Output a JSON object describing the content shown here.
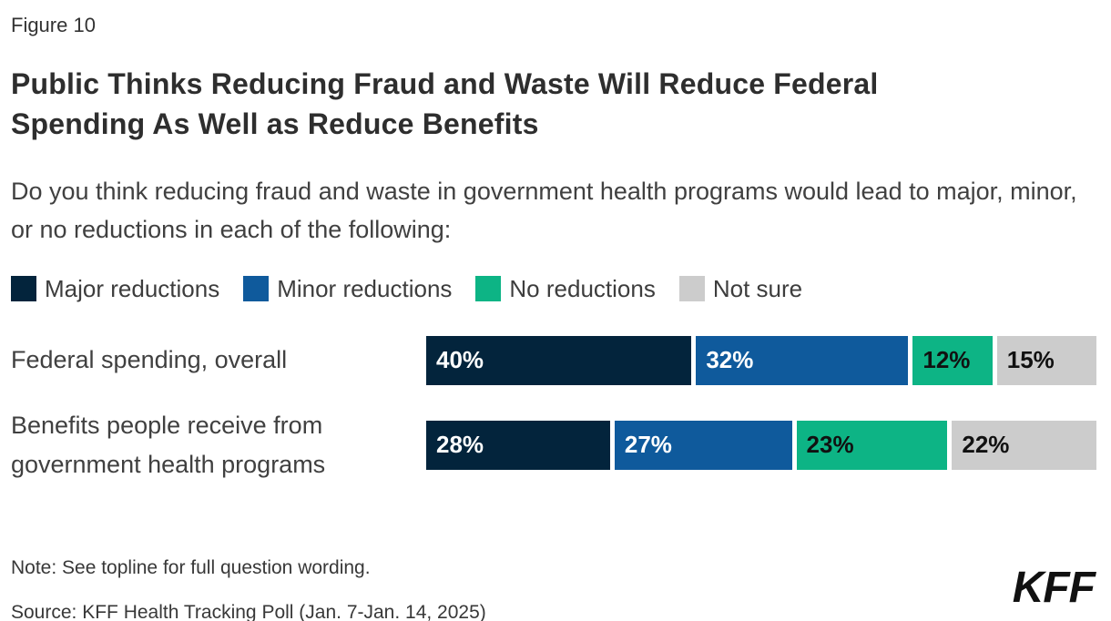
{
  "figure_label": "Figure 10",
  "title": "Public Thinks Reducing Fraud and Waste Will Reduce Federal Spending As Well as Reduce Benefits",
  "subtitle": "Do you think reducing fraud and waste in government health programs would lead to major, minor, or no reductions in each of the following:",
  "note": "Note: See topline for full question wording.",
  "source": "Source: KFF Health Tracking Poll (Jan. 7-Jan. 14, 2025)",
  "logo_text": "KFF",
  "colors": {
    "major": "#03243c",
    "minor": "#0f5a9c",
    "none": "#0db485",
    "not_sure": "#cccccc"
  },
  "chart_data": {
    "type": "bar",
    "orientation": "horizontal-stacked",
    "title": "Public Thinks Reducing Fraud and Waste Will Reduce Federal Spending As Well as Reduce Benefits",
    "categories": [
      "Federal spending, overall",
      "Benefits people receive from government health programs"
    ],
    "series": [
      {
        "name": "Major reductions",
        "color": "#03243c",
        "text_color": "#ffffff",
        "values": [
          40,
          28
        ]
      },
      {
        "name": "Minor reductions",
        "color": "#0f5a9c",
        "text_color": "#ffffff",
        "values": [
          32,
          27
        ]
      },
      {
        "name": "No reductions",
        "color": "#0db485",
        "text_color": "#111111",
        "values": [
          12,
          23
        ]
      },
      {
        "name": "Not sure",
        "color": "#cccccc",
        "text_color": "#111111",
        "values": [
          15,
          22
        ]
      }
    ],
    "value_suffix": "%",
    "xlim": [
      0,
      100
    ],
    "grid": false,
    "legend_position": "top"
  }
}
